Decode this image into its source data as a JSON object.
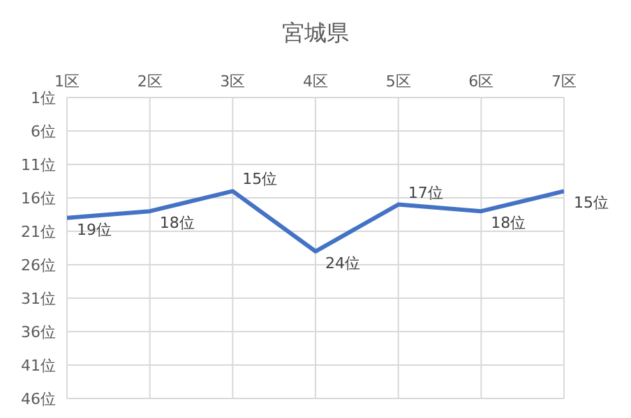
{
  "chart_data": {
    "type": "line",
    "title": "宮城県",
    "categories": [
      "1区",
      "2区",
      "3区",
      "4区",
      "5区",
      "6区",
      "7区"
    ],
    "series": [
      {
        "color": "#4472c4",
        "values": [
          19,
          18,
          15,
          24,
          17,
          18,
          15
        ],
        "value_labels": [
          "19位",
          "18位",
          "15位",
          "24位",
          "17位",
          "18位",
          "15位"
        ]
      }
    ],
    "ylim": [
      46,
      1
    ],
    "yticks": [
      {
        "value": 1,
        "label": "1位"
      },
      {
        "value": 6,
        "label": "6位"
      },
      {
        "value": 11,
        "label": "11位"
      },
      {
        "value": 16,
        "label": "16位"
      },
      {
        "value": 21,
        "label": "21位"
      },
      {
        "value": 26,
        "label": "26位"
      },
      {
        "value": 31,
        "label": "31位"
      },
      {
        "value": 36,
        "label": "36位"
      },
      {
        "value": 41,
        "label": "41位"
      },
      {
        "value": 46,
        "label": "46位"
      }
    ],
    "grid": true,
    "marker": "none",
    "line_style": "solid"
  }
}
